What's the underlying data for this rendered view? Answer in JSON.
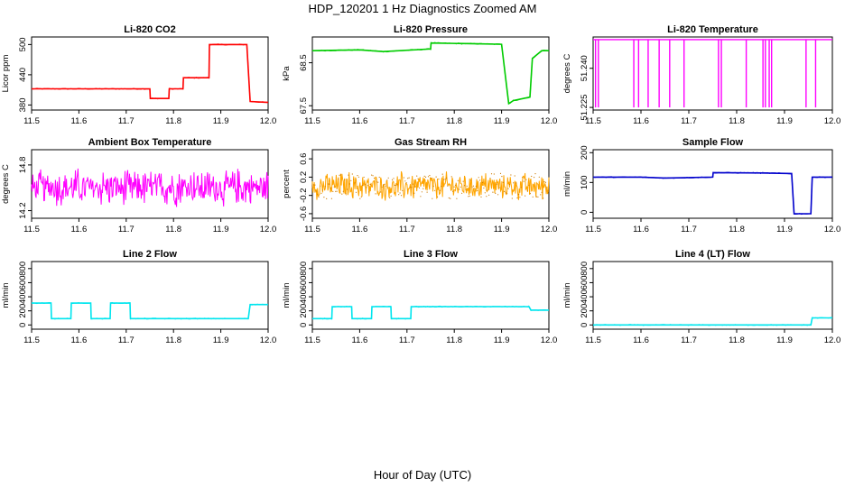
{
  "title": "HDP_120201  1 Hz Diagnostics Zoomed AM",
  "xlabel": "Hour of Day (UTC)",
  "chart_data": [
    {
      "type": "line",
      "title": "Li-820 CO2",
      "ylabel": "Licor ppm",
      "color": "#ff0000",
      "xlim": [
        11.5,
        12.0
      ],
      "ylim": [
        370,
        515
      ],
      "yticks": [
        380,
        440,
        500
      ],
      "ytick_labels": [
        "380",
        "440",
        "500"
      ],
      "xticks": [
        11.5,
        11.6,
        11.7,
        11.8,
        11.9,
        12.0
      ],
      "x": [
        11.5,
        11.75,
        11.751,
        11.79,
        11.791,
        11.82,
        11.821,
        11.875,
        11.876,
        11.955,
        11.962,
        12.0
      ],
      "y": [
        412,
        412,
        393,
        393,
        412,
        412,
        434,
        434,
        500,
        500,
        387,
        385
      ]
    },
    {
      "type": "line",
      "title": "Li-820 Pressure",
      "ylabel": "kPa",
      "color": "#00cc00",
      "xlim": [
        11.5,
        12.0
      ],
      "ylim": [
        67.4,
        69.1
      ],
      "yticks": [
        67.5,
        68.5
      ],
      "ytick_labels": [
        "67.5",
        "68.5"
      ],
      "xticks": [
        11.5,
        11.6,
        11.7,
        11.8,
        11.9,
        12.0
      ],
      "x": [
        11.5,
        11.6,
        11.65,
        11.75,
        11.751,
        11.85,
        11.9,
        11.915,
        11.925,
        11.96,
        11.965,
        11.985,
        12.0
      ],
      "y": [
        68.78,
        68.8,
        68.76,
        68.82,
        68.96,
        68.94,
        68.93,
        67.55,
        67.62,
        67.7,
        68.6,
        68.78,
        68.78
      ]
    },
    {
      "type": "line",
      "title": "Li-820 Temperature",
      "ylabel": "degrees C",
      "color": "#ff00ff",
      "xlim": [
        11.5,
        12.0
      ],
      "ylim": [
        51.224,
        51.252
      ],
      "yticks": [
        51.225,
        51.24
      ],
      "ytick_labels": [
        "51.225",
        "51.240"
      ],
      "xticks": [
        11.5,
        11.6,
        11.7,
        11.8,
        11.9,
        12.0
      ],
      "baseline": 51.251,
      "drop_to": 51.225,
      "drops": [
        11.505,
        11.511,
        11.585,
        11.595,
        11.615,
        11.638,
        11.66,
        11.69,
        11.762,
        11.768,
        11.82,
        11.855,
        11.86,
        11.868,
        11.873,
        11.945,
        11.965
      ]
    },
    {
      "type": "line",
      "title": "Ambient Box Temperature",
      "ylabel": "degrees C",
      "color": "#ff00ff",
      "xlim": [
        11.5,
        12.0
      ],
      "ylim": [
        14.1,
        15.0
      ],
      "yticks": [
        14.2,
        14.8
      ],
      "ytick_labels": [
        "14.2",
        "14.8"
      ],
      "xticks": [
        11.5,
        11.6,
        11.7,
        11.8,
        11.9,
        12.0
      ],
      "noise_center": 14.5,
      "noise_amplitude": 0.28
    },
    {
      "type": "line",
      "title": "Gas Stream RH",
      "ylabel": "percent",
      "color": "#ffa500",
      "xlim": [
        11.5,
        12.0
      ],
      "ylim": [
        -0.7,
        0.8
      ],
      "yticks": [
        -0.6,
        -0.2,
        0.2,
        0.6
      ],
      "ytick_labels": [
        "-0.6",
        "-0.2",
        "0.2",
        "0.6"
      ],
      "xticks": [
        11.5,
        11.6,
        11.7,
        11.8,
        11.9,
        12.0
      ],
      "noise_center": 0.0,
      "noise_amplitude": 0.35
    },
    {
      "type": "line",
      "title": "Sample Flow",
      "ylabel": "ml/min",
      "color": "#0000cc",
      "xlim": [
        11.5,
        12.0
      ],
      "ylim": [
        -20,
        210
      ],
      "yticks": [
        0,
        100,
        200
      ],
      "ytick_labels": [
        "0",
        "100",
        "200"
      ],
      "xticks": [
        11.5,
        11.6,
        11.7,
        11.8,
        11.9,
        12.0
      ],
      "x": [
        11.5,
        11.6,
        11.65,
        11.75,
        11.751,
        11.85,
        11.915,
        11.92,
        11.955,
        11.958,
        12.0
      ],
      "y": [
        118,
        118,
        115,
        118,
        133,
        132,
        130,
        -5,
        -5,
        118,
        118
      ]
    },
    {
      "type": "line",
      "title": "Line 2 Flow",
      "ylabel": "ml/min",
      "color": "#00e5ee",
      "xlim": [
        11.5,
        12.0
      ],
      "ylim": [
        -60,
        900
      ],
      "yticks": [
        0,
        200,
        400,
        600,
        800
      ],
      "ytick_labels": [
        "0",
        "200",
        "400",
        "600",
        "800"
      ],
      "xticks": [
        11.5,
        11.6,
        11.7,
        11.8,
        11.9,
        12.0
      ],
      "x": [
        11.5,
        11.541,
        11.542,
        11.583,
        11.584,
        11.625,
        11.626,
        11.666,
        11.667,
        11.708,
        11.709,
        11.958,
        11.962,
        12.0
      ],
      "y": [
        310,
        310,
        90,
        90,
        310,
        310,
        90,
        90,
        310,
        310,
        90,
        90,
        290,
        290
      ]
    },
    {
      "type": "line",
      "title": "Line 3 Flow",
      "ylabel": "ml/min",
      "color": "#00e5ee",
      "xlim": [
        11.5,
        12.0
      ],
      "ylim": [
        -60,
        900
      ],
      "yticks": [
        0,
        200,
        400,
        600,
        800
      ],
      "ytick_labels": [
        "0",
        "200",
        "400",
        "600",
        "800"
      ],
      "xticks": [
        11.5,
        11.6,
        11.7,
        11.8,
        11.9,
        12.0
      ],
      "x": [
        11.5,
        11.541,
        11.542,
        11.583,
        11.584,
        11.625,
        11.626,
        11.666,
        11.667,
        11.708,
        11.709,
        11.958,
        11.962,
        12.0
      ],
      "y": [
        90,
        90,
        260,
        260,
        90,
        90,
        260,
        260,
        90,
        90,
        260,
        260,
        210,
        210
      ]
    },
    {
      "type": "line",
      "title": "Line 4 (LT) Flow",
      "ylabel": "ml/min",
      "color": "#00e5ee",
      "xlim": [
        11.5,
        12.0
      ],
      "ylim": [
        -60,
        900
      ],
      "yticks": [
        0,
        200,
        400,
        600,
        800
      ],
      "ytick_labels": [
        "0",
        "200",
        "400",
        "600",
        "800"
      ],
      "xticks": [
        11.5,
        11.6,
        11.7,
        11.8,
        11.9,
        12.0
      ],
      "x": [
        11.5,
        11.955,
        11.958,
        12.0
      ],
      "y": [
        0,
        0,
        100,
        100
      ]
    }
  ]
}
